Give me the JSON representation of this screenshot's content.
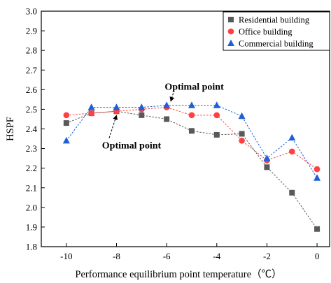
{
  "chart_data": {
    "type": "line",
    "xlabel": "Performance equilibrium point temperature（℃）",
    "ylabel": "HSPF",
    "xlim": [
      -11,
      0.5
    ],
    "ylim": [
      1.8,
      3.0
    ],
    "xticks": [
      "-10",
      "-8",
      "-6",
      "-4",
      "-2",
      "0"
    ],
    "yticks": [
      "1.8",
      "1.9",
      "2.0",
      "2.1",
      "2.2",
      "2.3",
      "2.4",
      "2.5",
      "2.6",
      "2.7",
      "2.8",
      "2.9",
      "3.0"
    ],
    "x": [
      -10,
      -9,
      -8,
      -7,
      -6,
      -5,
      -4,
      -3,
      -2,
      -1,
      0
    ],
    "legend_position": "top-right",
    "series": [
      {
        "name": "Residential building",
        "color": "#595959",
        "marker": "square",
        "values": [
          2.43,
          2.48,
          2.49,
          2.47,
          2.45,
          2.39,
          2.37,
          2.375,
          2.205,
          2.075,
          1.89
        ]
      },
      {
        "name": "Office building",
        "color": "#ff4040",
        "marker": "circle",
        "values": [
          2.47,
          2.48,
          2.49,
          2.5,
          2.51,
          2.47,
          2.47,
          2.34,
          2.24,
          2.285,
          2.195
        ]
      },
      {
        "name": "Commercial building",
        "color": "#1f5fd6",
        "marker": "triangle",
        "values": [
          2.34,
          2.51,
          2.51,
          2.51,
          2.52,
          2.52,
          2.52,
          2.465,
          2.25,
          2.355,
          2.15
        ]
      }
    ],
    "annotations": [
      {
        "text": "Optimal point",
        "x": -4.9,
        "y": 2.6,
        "arrow_to": {
          "x": -6,
          "y": 2.52
        }
      },
      {
        "text": "Optimal point",
        "x": -7.4,
        "y": 2.3,
        "arrow_to": {
          "x": -8,
          "y": 2.49
        }
      }
    ]
  }
}
